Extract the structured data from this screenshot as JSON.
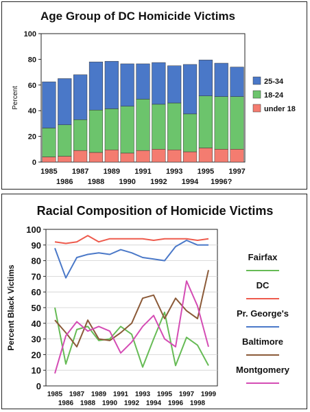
{
  "chart_data": [
    {
      "type": "bar",
      "stacked": true,
      "title": "Age Group of DC Homicide Victims",
      "ylabel": "Percent",
      "xlabel": "",
      "ylim": [
        0,
        100
      ],
      "yticks": [
        0,
        20,
        40,
        60,
        80,
        100
      ],
      "grid": false,
      "legend_position": "right",
      "categories": [
        "1985",
        "1986",
        "1987",
        "1988",
        "1989",
        "1990",
        "1991",
        "1992",
        "1993",
        "1994",
        "1995",
        "1996?",
        "1997"
      ],
      "series": [
        {
          "name": "under 18",
          "color": "#f47c70",
          "values": [
            4,
            4.5,
            9,
            7.5,
            9.5,
            7,
            9,
            10,
            9.5,
            8,
            11,
            10,
            10
          ]
        },
        {
          "name": "18-24",
          "color": "#6cc46c",
          "values": [
            22.5,
            24.5,
            24,
            33,
            32,
            36.5,
            40,
            35,
            36.5,
            29.5,
            40.5,
            41,
            41
          ]
        },
        {
          "name": "25-34",
          "color": "#4a78c8",
          "values": [
            36,
            36,
            35,
            37.5,
            37,
            33,
            27.5,
            32.5,
            29,
            38.5,
            28,
            26,
            23
          ]
        }
      ]
    },
    {
      "type": "line",
      "title": "Racial Composition of Homicide Victims",
      "ylabel": "Percent Black Victims",
      "xlabel": "",
      "ylim": [
        0,
        100
      ],
      "yticks": [
        0,
        10,
        20,
        30,
        40,
        50,
        60,
        70,
        80,
        90,
        100
      ],
      "grid": true,
      "legend_position": "right",
      "x": [
        "1985",
        "1986",
        "1987",
        "1988",
        "1989",
        "1990",
        "1991",
        "1992",
        "1993",
        "1994",
        "1995",
        "1996",
        "1997",
        "1998",
        "1999"
      ],
      "series": [
        {
          "name": "Fairfax",
          "color": "#66bb55",
          "values": [
            50,
            14,
            36,
            38,
            29,
            30,
            38,
            33,
            12,
            30,
            47,
            13,
            31,
            26,
            13
          ]
        },
        {
          "name": "DC",
          "color": "#ee5a4c",
          "values": [
            92,
            91,
            92,
            96,
            92,
            94,
            94,
            94,
            94,
            93,
            94,
            94,
            94,
            93,
            94
          ]
        },
        {
          "name": "Pr. George's",
          "color": "#4a78c8",
          "values": [
            88,
            69,
            82,
            84,
            85,
            84,
            87,
            85,
            82,
            81,
            80,
            89,
            93,
            90,
            90
          ]
        },
        {
          "name": "Baltimore",
          "color": "#8b5a38",
          "values": [
            42,
            34,
            25,
            42,
            30,
            29,
            34,
            40,
            56,
            58,
            43,
            56,
            48,
            43,
            74
          ]
        },
        {
          "name": "Montgomery",
          "color": "#d44cb4",
          "values": [
            8,
            32,
            41,
            35,
            38,
            35,
            21,
            28,
            38,
            45,
            30,
            25,
            67,
            51,
            25
          ]
        }
      ]
    }
  ]
}
